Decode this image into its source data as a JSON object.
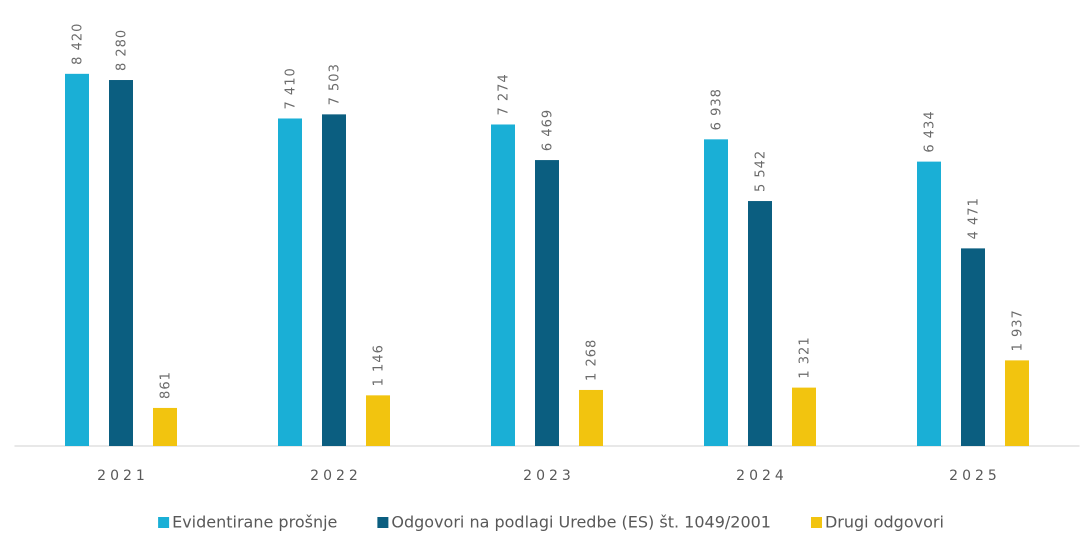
{
  "chart_data": {
    "type": "bar",
    "categories": [
      "2021",
      "2022",
      "2023",
      "2024",
      "2025"
    ],
    "series": [
      {
        "name": "Evidentirane prošnje",
        "color": "#1aafd6",
        "values": [
          8420,
          7410,
          7274,
          6938,
          6434
        ],
        "value_labels": [
          "8 420",
          "7 410",
          "7 274",
          "6 938",
          "6 434"
        ]
      },
      {
        "name": "Odgovori na podlagi Uredbe (ES) št. 1049/2001",
        "color": "#0b5e80",
        "values": [
          8280,
          7503,
          6469,
          5542,
          4471
        ],
        "value_labels": [
          "8 280",
          "7 503",
          "6 469",
          "5 542",
          "4 471"
        ]
      },
      {
        "name": "Drugi odgovori",
        "color": "#f2c40f",
        "values": [
          861,
          1146,
          1268,
          1321,
          1937
        ],
        "value_labels": [
          "861",
          "1 146",
          "1 268",
          "1 321",
          "1 937"
        ]
      }
    ],
    "ylim": [
      0,
      10000
    ],
    "legend": "bottom"
  }
}
